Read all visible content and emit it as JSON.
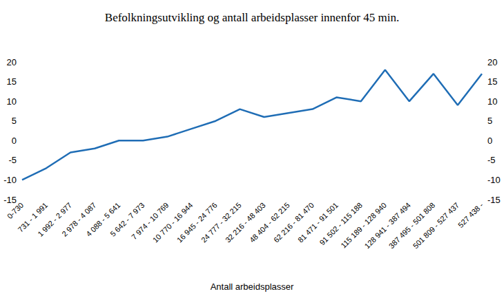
{
  "chart_data": {
    "type": "line",
    "title": "Befolkningsutvikling og antall arbeidsplasser innenfor 45 min.",
    "x_label": "Antall arbeidsplasser",
    "categories": [
      "0-730",
      "731 - 1 991",
      "1 992 - 2 977",
      "2 978 - 4 087",
      "4 088 - 5 641",
      "5 642 - 7 973",
      "7 974 - 10 769",
      "10 770 - 16 944",
      "16 945 - 24 776",
      "24 777 - 32 215",
      "32 216 - 48 403",
      "48 404 - 62 215",
      "62 216 - 81 470",
      "81 471 - 91 501",
      "91 502 - 115 188",
      "115 189 - 128 940",
      "128 941 - 387 494",
      "387 495 - 501 808",
      "501 809 - 527 437",
      "527 438 -"
    ],
    "values": [
      -10,
      -7,
      -3,
      -2,
      0,
      0,
      1,
      3,
      5,
      8,
      6,
      7,
      8,
      11,
      10,
      18,
      10,
      17,
      9,
      17
    ],
    "color": "#1f6db5",
    "ylim": [
      -15,
      20
    ],
    "yticks": [
      -15,
      -10,
      -5,
      0,
      5,
      10,
      15,
      20
    ],
    "y2lim": [
      -15,
      20
    ],
    "y2ticks": [
      -15,
      -10,
      -5,
      0,
      5,
      10,
      15,
      20
    ],
    "grid": false
  }
}
